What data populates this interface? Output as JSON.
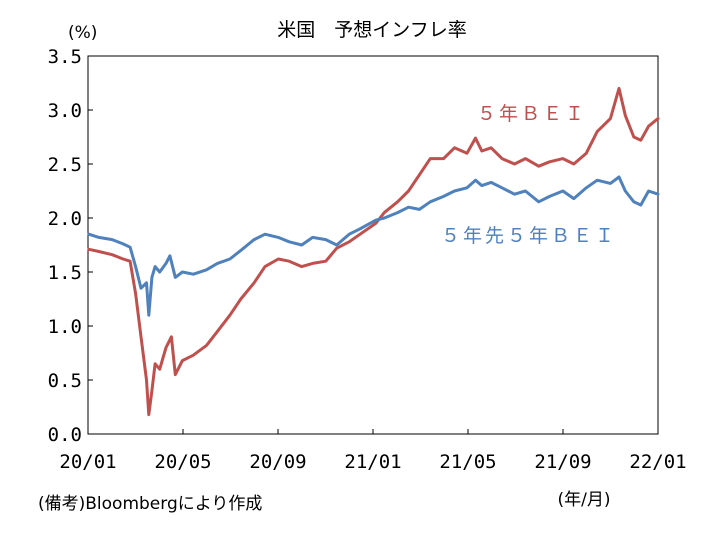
{
  "chart_data": {
    "type": "line",
    "title": "米国　予想インフレ率",
    "unit_label": "(%)",
    "xlabel": "(年/月)",
    "note": "(備考)Bloombergにより作成",
    "ylim": [
      0.0,
      3.5
    ],
    "yticks": [
      "0.0",
      "0.5",
      "1.0",
      "1.5",
      "2.0",
      "2.5",
      "3.0",
      "3.5"
    ],
    "xticks": [
      "20/01",
      "20/05",
      "20/09",
      "21/01",
      "21/05",
      "21/09",
      "22/01"
    ],
    "grid": false,
    "series": [
      {
        "name": "５年ＢＥＩ",
        "color": "#c0504d",
        "points": [
          [
            "2020-01-02",
            1.71
          ],
          [
            "2020-01-15",
            1.69
          ],
          [
            "2020-02-01",
            1.66
          ],
          [
            "2020-02-15",
            1.62
          ],
          [
            "2020-02-24",
            1.6
          ],
          [
            "2020-03-02",
            1.3
          ],
          [
            "2020-03-09",
            0.9
          ],
          [
            "2020-03-16",
            0.5
          ],
          [
            "2020-03-19",
            0.18
          ],
          [
            "2020-03-23",
            0.4
          ],
          [
            "2020-03-27",
            0.65
          ],
          [
            "2020-04-02",
            0.6
          ],
          [
            "2020-04-10",
            0.8
          ],
          [
            "2020-04-17",
            0.9
          ],
          [
            "2020-04-22",
            0.55
          ],
          [
            "2020-05-01",
            0.68
          ],
          [
            "2020-05-15",
            0.73
          ],
          [
            "2020-06-01",
            0.82
          ],
          [
            "2020-06-15",
            0.95
          ],
          [
            "2020-07-01",
            1.1
          ],
          [
            "2020-07-15",
            1.25
          ],
          [
            "2020-08-01",
            1.4
          ],
          [
            "2020-08-15",
            1.55
          ],
          [
            "2020-09-01",
            1.62
          ],
          [
            "2020-09-15",
            1.6
          ],
          [
            "2020-10-01",
            1.55
          ],
          [
            "2020-10-15",
            1.58
          ],
          [
            "2020-11-01",
            1.6
          ],
          [
            "2020-11-15",
            1.72
          ],
          [
            "2020-12-01",
            1.78
          ],
          [
            "2020-12-15",
            1.85
          ],
          [
            "2021-01-04",
            1.95
          ],
          [
            "2021-01-15",
            2.05
          ],
          [
            "2021-02-01",
            2.15
          ],
          [
            "2021-02-15",
            2.25
          ],
          [
            "2021-03-01",
            2.4
          ],
          [
            "2021-03-15",
            2.55
          ],
          [
            "2021-04-01",
            2.55
          ],
          [
            "2021-04-15",
            2.65
          ],
          [
            "2021-05-01",
            2.6
          ],
          [
            "2021-05-12",
            2.74
          ],
          [
            "2021-05-20",
            2.62
          ],
          [
            "2021-06-01",
            2.65
          ],
          [
            "2021-06-15",
            2.55
          ],
          [
            "2021-07-01",
            2.5
          ],
          [
            "2021-07-15",
            2.55
          ],
          [
            "2021-08-01",
            2.48
          ],
          [
            "2021-08-15",
            2.52
          ],
          [
            "2021-09-01",
            2.55
          ],
          [
            "2021-09-15",
            2.5
          ],
          [
            "2021-10-01",
            2.6
          ],
          [
            "2021-10-15",
            2.8
          ],
          [
            "2021-11-01",
            2.92
          ],
          [
            "2021-11-12",
            3.2
          ],
          [
            "2021-11-20",
            2.95
          ],
          [
            "2021-12-01",
            2.75
          ],
          [
            "2021-12-10",
            2.72
          ],
          [
            "2021-12-20",
            2.85
          ],
          [
            "2022-01-01",
            2.92
          ]
        ]
      },
      {
        "name": "５年先５年ＢＥＩ",
        "color": "#4f81bd",
        "points": [
          [
            "2020-01-02",
            1.85
          ],
          [
            "2020-01-15",
            1.82
          ],
          [
            "2020-02-01",
            1.8
          ],
          [
            "2020-02-15",
            1.76
          ],
          [
            "2020-02-24",
            1.73
          ],
          [
            "2020-03-02",
            1.55
          ],
          [
            "2020-03-09",
            1.35
          ],
          [
            "2020-03-16",
            1.4
          ],
          [
            "2020-03-19",
            1.1
          ],
          [
            "2020-03-23",
            1.45
          ],
          [
            "2020-03-27",
            1.55
          ],
          [
            "2020-04-02",
            1.5
          ],
          [
            "2020-04-10",
            1.58
          ],
          [
            "2020-04-15",
            1.65
          ],
          [
            "2020-04-22",
            1.45
          ],
          [
            "2020-05-01",
            1.5
          ],
          [
            "2020-05-15",
            1.48
          ],
          [
            "2020-06-01",
            1.52
          ],
          [
            "2020-06-15",
            1.58
          ],
          [
            "2020-07-01",
            1.62
          ],
          [
            "2020-07-15",
            1.7
          ],
          [
            "2020-08-01",
            1.8
          ],
          [
            "2020-08-15",
            1.85
          ],
          [
            "2020-09-01",
            1.82
          ],
          [
            "2020-09-15",
            1.78
          ],
          [
            "2020-10-01",
            1.75
          ],
          [
            "2020-10-15",
            1.82
          ],
          [
            "2020-11-01",
            1.8
          ],
          [
            "2020-11-15",
            1.75
          ],
          [
            "2020-12-01",
            1.85
          ],
          [
            "2020-12-15",
            1.9
          ],
          [
            "2021-01-04",
            1.98
          ],
          [
            "2021-01-15",
            2.0
          ],
          [
            "2021-02-01",
            2.05
          ],
          [
            "2021-02-15",
            2.1
          ],
          [
            "2021-03-01",
            2.08
          ],
          [
            "2021-03-15",
            2.15
          ],
          [
            "2021-04-01",
            2.2
          ],
          [
            "2021-04-15",
            2.25
          ],
          [
            "2021-05-01",
            2.28
          ],
          [
            "2021-05-12",
            2.35
          ],
          [
            "2021-05-20",
            2.3
          ],
          [
            "2021-06-01",
            2.33
          ],
          [
            "2021-06-15",
            2.28
          ],
          [
            "2021-07-01",
            2.22
          ],
          [
            "2021-07-15",
            2.25
          ],
          [
            "2021-08-01",
            2.15
          ],
          [
            "2021-08-15",
            2.2
          ],
          [
            "2021-09-01",
            2.25
          ],
          [
            "2021-09-15",
            2.18
          ],
          [
            "2021-10-01",
            2.28
          ],
          [
            "2021-10-15",
            2.35
          ],
          [
            "2021-11-01",
            2.32
          ],
          [
            "2021-11-12",
            2.38
          ],
          [
            "2021-11-20",
            2.25
          ],
          [
            "2021-12-01",
            2.15
          ],
          [
            "2021-12-10",
            2.12
          ],
          [
            "2021-12-20",
            2.25
          ],
          [
            "2022-01-01",
            2.22
          ]
        ]
      }
    ]
  }
}
